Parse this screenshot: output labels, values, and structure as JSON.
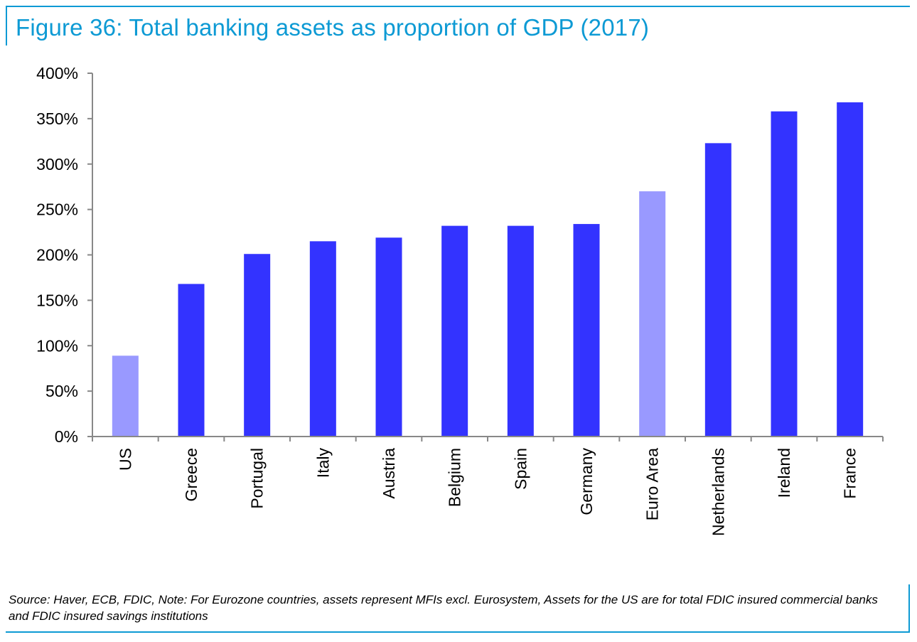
{
  "header": {
    "title": "Figure 36: Total banking assets as proportion of GDP (2017)"
  },
  "chart_data": {
    "type": "bar",
    "title": "Figure 36: Total banking assets as proportion of GDP (2017)",
    "xlabel": "",
    "ylabel": "",
    "ylim": [
      0,
      400
    ],
    "yticks": [
      0,
      50,
      100,
      150,
      200,
      250,
      300,
      350,
      400
    ],
    "ytick_labels": [
      "0%",
      "50%",
      "100%",
      "150%",
      "200%",
      "250%",
      "300%",
      "350%",
      "400%"
    ],
    "categories": [
      "US",
      "Greece",
      "Portugal",
      "Italy",
      "Austria",
      "Belgium",
      "Spain",
      "Germany",
      "Euro Area",
      "Netherlands",
      "Ireland",
      "France"
    ],
    "values": [
      89,
      168,
      201,
      215,
      219,
      232,
      232,
      234,
      270,
      323,
      358,
      368
    ],
    "highlight": [
      true,
      false,
      false,
      false,
      false,
      false,
      false,
      false,
      true,
      false,
      false,
      false
    ],
    "colors": {
      "default": "#3333ff",
      "highlight": "#9999ff",
      "axis": "#888888"
    },
    "grid": false,
    "legend": "none"
  },
  "footer": {
    "source": "Source: Haver, ECB, FDIC, Note: For Eurozone countries, assets represent MFIs excl. Eurosystem, Assets for the US are for total FDIC insured commercial banks and FDIC insured savings institutions"
  }
}
